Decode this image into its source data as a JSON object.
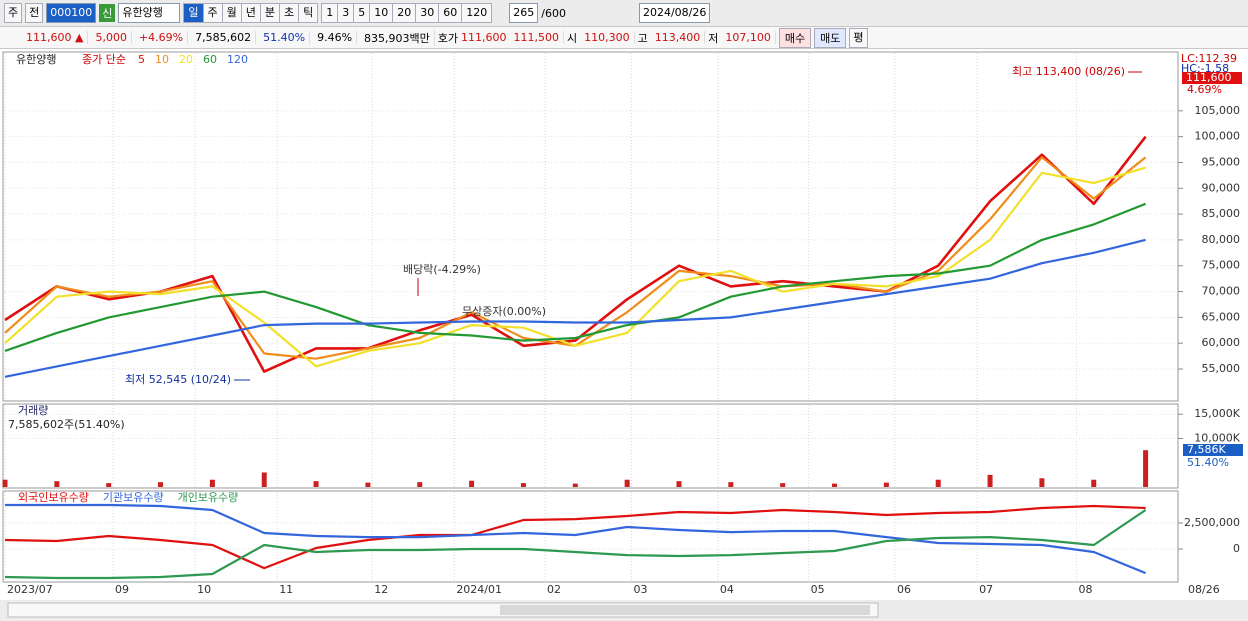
{
  "toolbar": {
    "type_select": "주",
    "prev": "전",
    "code": "000100",
    "new_badge": "신",
    "name": "유한양행",
    "periods": [
      "일",
      "주",
      "월",
      "년",
      "분",
      "초",
      "틱"
    ],
    "minutes": [
      "1",
      "3",
      "5",
      "10",
      "20",
      "30",
      "60",
      "120"
    ],
    "count": "265",
    "max_count": "/600",
    "date": "2024/08/26"
  },
  "info_bar": {
    "price": "111,600",
    "arrow": "▲",
    "change": "5,000",
    "change_pct": "+4.69%",
    "volume": "7,585,602",
    "volume_ratio": "51.40%",
    "turnover": "9.46%",
    "market_cap": "835,903백만",
    "quote_label": "호가",
    "ask": "111,600",
    "bid": "111,500",
    "open_label": "시",
    "open": "110,300",
    "high_label": "고",
    "high": "113,400",
    "low_label": "저",
    "low": "107,100",
    "buy": "매수",
    "sell": "매도",
    "avg": "평"
  },
  "chart_data": [
    {
      "type": "line",
      "name_label": "유한양행",
      "indicator": "종가 단순",
      "x": [
        0,
        12,
        24,
        36,
        48,
        60,
        72,
        84,
        96,
        108,
        120,
        132,
        144,
        156,
        168,
        180,
        192,
        204,
        216,
        228,
        240,
        252,
        264
      ],
      "xlim": [
        0,
        271.5
      ],
      "ylim": [
        49000,
        116200
      ],
      "yticks": [
        {
          "value": 55000,
          "label": "55,000"
        },
        {
          "value": 60000,
          "label": "60,000"
        },
        {
          "value": 65000,
          "label": "65,000"
        },
        {
          "value": 70000,
          "label": "70,000"
        },
        {
          "value": 75000,
          "label": "75,000"
        },
        {
          "value": 80000,
          "label": "80,000"
        },
        {
          "value": 85000,
          "label": "85,000"
        },
        {
          "value": 90000,
          "label": "90,000"
        },
        {
          "value": 95000,
          "label": "95,000"
        },
        {
          "value": 100000,
          "label": "100,000"
        },
        {
          "value": 105000,
          "label": "105,000"
        }
      ],
      "grid": true,
      "series": [
        {
          "name": "5",
          "color": "#e01010",
          "values": [
            64500,
            71000,
            68500,
            70000,
            73000,
            54500,
            59000,
            59000,
            62500,
            65500,
            59500,
            60500,
            68500,
            75000,
            71000,
            72000,
            71000,
            70000,
            75000,
            87500,
            96500,
            87000,
            100000
          ]
        },
        {
          "name": "10",
          "color": "#f08c1a",
          "values": [
            62000,
            71000,
            69000,
            70000,
            72000,
            58000,
            57000,
            59000,
            61000,
            66000,
            61000,
            59500,
            66000,
            74000,
            73000,
            71000,
            71500,
            70000,
            74000,
            84000,
            96000,
            88000,
            96000
          ]
        },
        {
          "name": "20",
          "color": "#f2e02a",
          "values": [
            60000,
            69000,
            70000,
            69500,
            71000,
            64000,
            55500,
            58500,
            60000,
            63500,
            63000,
            59500,
            62000,
            72000,
            74000,
            70000,
            71500,
            71000,
            73000,
            80000,
            93000,
            91000,
            94000
          ]
        },
        {
          "name": "60",
          "color": "#229933",
          "values": [
            58500,
            62000,
            65000,
            67000,
            69000,
            70000,
            67000,
            63500,
            62000,
            61500,
            60500,
            61000,
            63500,
            65000,
            69000,
            71000,
            72000,
            73000,
            73500,
            75000,
            80000,
            83000,
            87000
          ]
        },
        {
          "name": "120",
          "color": "#3366dd",
          "values": [
            53500,
            55500,
            57500,
            59500,
            61500,
            63500,
            63800,
            63800,
            64000,
            64200,
            64200,
            64000,
            64000,
            64500,
            65000,
            66500,
            68000,
            69500,
            71000,
            72500,
            75500,
            77500,
            80000
          ]
        }
      ],
      "annotations": [
        "최고 113,400 (08/26)",
        "최저 52,545 (10/24)",
        "배당락(-4.29%)",
        "무상증자(0.00%)"
      ],
      "lc_label": "LC:112.39",
      "hc_label": "HC:-1.58",
      "last_price_label": "111,600",
      "last_change_label": "4.69%"
    },
    {
      "type": "bar",
      "title": "거래량",
      "info": "7,585,602주(51.40%)",
      "color": "#cc2020",
      "x": [
        0,
        12,
        24,
        36,
        48,
        60,
        72,
        84,
        96,
        108,
        120,
        132,
        144,
        156,
        168,
        180,
        192,
        204,
        216,
        228,
        240,
        252,
        264
      ],
      "xlim": [
        0,
        271.5
      ],
      "ylim": [
        0,
        16900
      ],
      "yticks": [
        {
          "value": 10000,
          "label": "10,000K"
        },
        {
          "value": 15000,
          "label": "15,000K"
        }
      ],
      "values": [
        1500,
        1200,
        800,
        1000,
        1500,
        3000,
        1200,
        900,
        1000,
        1300,
        800,
        700,
        1500,
        1200,
        1000,
        800,
        700,
        900,
        1500,
        2500,
        1800,
        1500,
        7586
      ],
      "last_value_label": "7,586K",
      "last_ratio_label": "51.40%"
    },
    {
      "type": "line",
      "x": [
        0,
        12,
        24,
        36,
        48,
        60,
        72,
        84,
        96,
        108,
        120,
        132,
        144,
        156,
        168,
        180,
        192,
        204,
        216,
        228,
        240,
        252,
        264
      ],
      "xlim": [
        0,
        271.5
      ],
      "ylim": [
        -3170000,
        5480000
      ],
      "yticks": [
        0,
        {
          "value": 2500000,
          "label": "2,500,000"
        }
      ],
      "xticks": [
        {
          "value": 0,
          "label": "2023/07"
        },
        {
          "value": 25,
          "label": "09"
        },
        {
          "value": 44,
          "label": "10"
        },
        {
          "value": 63,
          "label": "11"
        },
        {
          "value": 85,
          "label": "12"
        },
        {
          "value": 104,
          "label": "2024/01"
        },
        {
          "value": 125,
          "label": "02"
        },
        {
          "value": 145,
          "label": "03"
        },
        {
          "value": 165,
          "label": "04"
        },
        {
          "value": 186,
          "label": "05"
        },
        {
          "value": 206,
          "label": "06"
        },
        {
          "value": 225,
          "label": "07"
        },
        {
          "value": 248,
          "label": "08"
        }
      ],
      "cursor_label": "08/26",
      "series": [
        {
          "name": "외국인보유수량",
          "color": "#e01010",
          "values": [
            865000,
            770000,
            1250000,
            865000,
            385000,
            -1830000,
            96000,
            865000,
            1350000,
            1350000,
            2790000,
            2880000,
            3170000,
            3560000,
            3460000,
            3750000,
            3560000,
            3270000,
            3460000,
            3560000,
            3940000,
            4130000,
            3940000
          ]
        },
        {
          "name": "기관보유수량",
          "color": "#3366dd",
          "values": [
            4230000,
            4230000,
            4230000,
            4130000,
            3750000,
            1540000,
            1250000,
            1150000,
            1150000,
            1350000,
            1540000,
            1350000,
            2120000,
            1830000,
            1630000,
            1730000,
            1730000,
            1150000,
            580000,
            480000,
            385000,
            -290000,
            -2310000
          ]
        },
        {
          "name": "개인보유수량",
          "color": "#2e9950",
          "values": [
            -2690000,
            -2790000,
            -2790000,
            -2690000,
            -2400000,
            385000,
            -290000,
            -96000,
            -96000,
            0,
            0,
            -290000,
            -580000,
            -670000,
            -580000,
            -385000,
            -190000,
            770000,
            1060000,
            1150000,
            870000,
            385000,
            3750000
          ]
        }
      ]
    }
  ]
}
